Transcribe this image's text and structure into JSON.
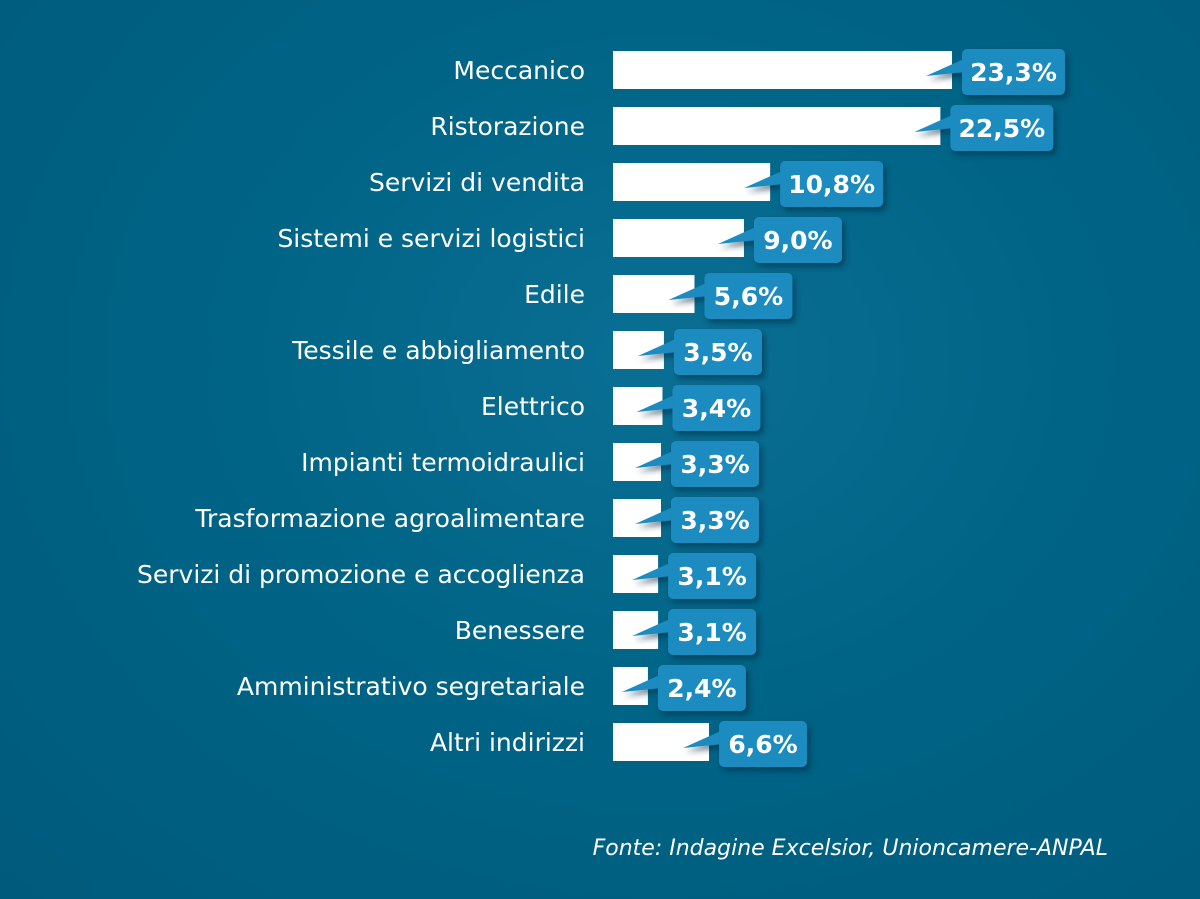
{
  "chart_data": {
    "type": "bar",
    "orientation": "horizontal",
    "categories": [
      "Meccanico",
      "Ristorazione",
      "Servizi di vendita",
      "Sistemi e servizi logistici",
      "Edile",
      "Tessile e abbigliamento",
      "Elettrico",
      "Impianti termoidraulici",
      "Trasformazione agroalimentare",
      "Servizi di promozione e accoglienza",
      "Benessere",
      "Amministrativo segretariale",
      "Altri indirizzi"
    ],
    "values": [
      23.3,
      22.5,
      10.8,
      9.0,
      5.6,
      3.5,
      3.4,
      3.3,
      3.3,
      3.1,
      3.1,
      2.4,
      6.6
    ],
    "value_labels": [
      "23,3%",
      "22,5%",
      "10,8%",
      "9,0%",
      "5,6%",
      "3,5%",
      "3,4%",
      "3,3%",
      "3,3%",
      "3,1%",
      "3,1%",
      "2,4%",
      "6,6%"
    ],
    "unit": "%",
    "title": "",
    "xlabel": "",
    "ylabel": "",
    "xlim": [
      0,
      25
    ],
    "grid": false,
    "legend": "none",
    "source": "Fonte: Indagine Excelsior, Unioncamere-ANPAL"
  },
  "colors": {
    "background": "#005e82",
    "bar": "#ffffff",
    "label_box": "#1a8bc0",
    "label_text": "#ffffff",
    "text": "#ffffff"
  }
}
